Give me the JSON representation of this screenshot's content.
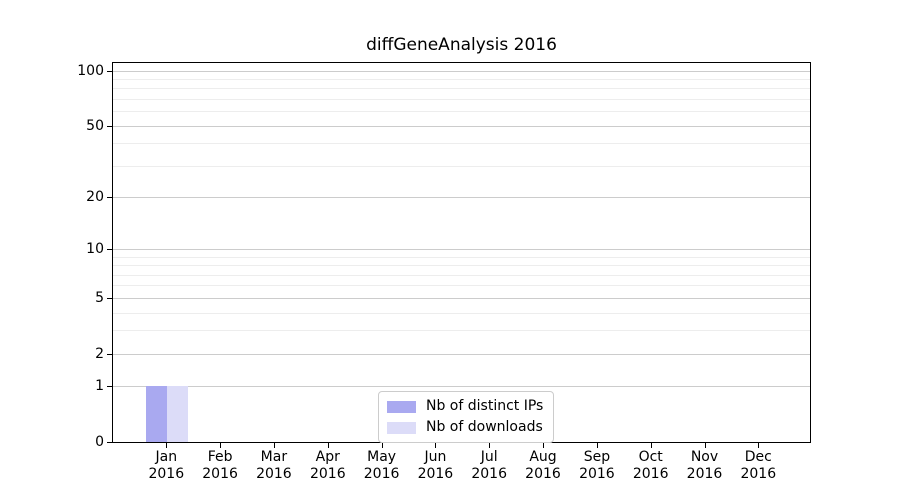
{
  "chart_data": {
    "type": "bar",
    "title": "diffGeneAnalysis 2016",
    "categories": [
      "Jan",
      "Feb",
      "Mar",
      "Apr",
      "May",
      "Jun",
      "Jul",
      "Aug",
      "Sep",
      "Oct",
      "Nov",
      "Dec"
    ],
    "category_sublabel": "2016",
    "series": [
      {
        "name": "Nb of distinct IPs",
        "color": "#a9a9f0",
        "values": [
          1,
          0,
          0,
          0,
          0,
          0,
          0,
          0,
          0,
          0,
          0,
          0
        ]
      },
      {
        "name": "Nb of downloads",
        "color": "#dcdcf8",
        "values": [
          1,
          0,
          0,
          0,
          0,
          0,
          0,
          0,
          0,
          0,
          0,
          0
        ]
      }
    ],
    "yscale": "log10(1+x)",
    "ylim": [
      0,
      110
    ],
    "y_major_ticks": [
      0,
      1,
      2,
      5,
      10,
      20,
      50,
      100
    ],
    "y_minor_ticks": [
      3,
      4,
      6,
      7,
      8,
      9,
      30,
      40,
      60,
      70,
      80,
      90
    ],
    "grid": "horizontal-only",
    "legend_position": "bottom-center"
  },
  "colors": {
    "background": "#ffffff",
    "axis": "#000000",
    "major_grid": "#cccccc",
    "minor_grid": "#ededed",
    "legend_border": "#cccccc",
    "bar_distinct_ips": "#a9a9f0",
    "bar_downloads": "#dcdcf8"
  }
}
